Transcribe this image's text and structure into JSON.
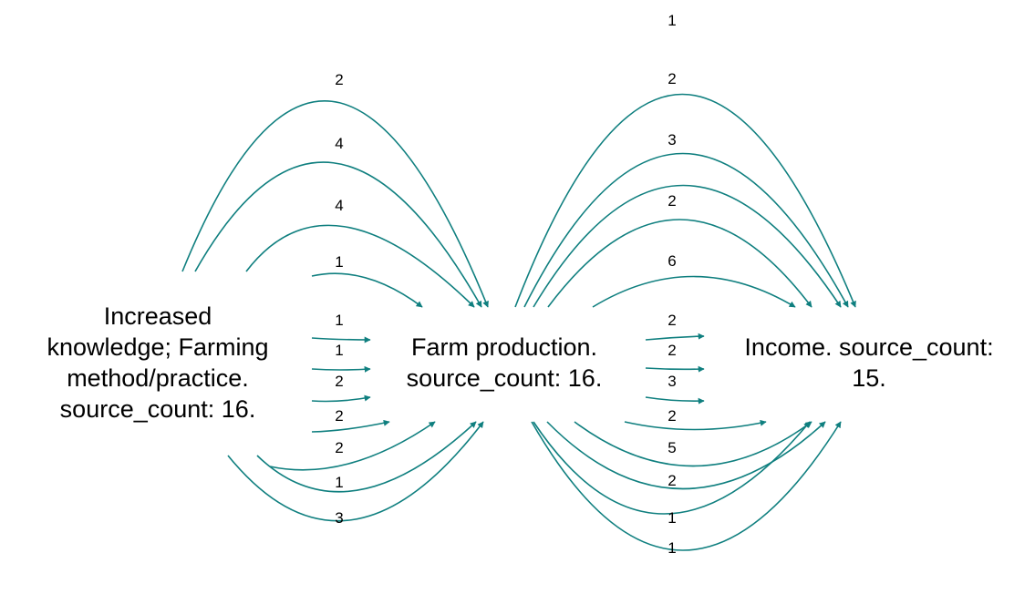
{
  "colors": {
    "edge": "#0f7f7f",
    "text": "#000000",
    "background": "#ffffff"
  },
  "nodes": [
    {
      "id": "knowledge",
      "lines": [
        "Increased",
        "knowledge; Farming",
        "method/practice.",
        "source_count: 16."
      ]
    },
    {
      "id": "production",
      "lines": [
        "Farm production.",
        "source_count: 16."
      ]
    },
    {
      "id": "income",
      "lines": [
        "Income. source_count:",
        "15."
      ]
    }
  ],
  "edges": [
    {
      "from": "knowledge",
      "to": "production",
      "label": "2"
    },
    {
      "from": "knowledge",
      "to": "production",
      "label": "4"
    },
    {
      "from": "knowledge",
      "to": "production",
      "label": "4"
    },
    {
      "from": "knowledge",
      "to": "production",
      "label": "1"
    },
    {
      "from": "knowledge",
      "to": "production",
      "label": "1"
    },
    {
      "from": "knowledge",
      "to": "production",
      "label": "1"
    },
    {
      "from": "knowledge",
      "to": "production",
      "label": "2"
    },
    {
      "from": "knowledge",
      "to": "production",
      "label": "2"
    },
    {
      "from": "knowledge",
      "to": "production",
      "label": "2"
    },
    {
      "from": "knowledge",
      "to": "production",
      "label": "1"
    },
    {
      "from": "knowledge",
      "to": "production",
      "label": "3"
    },
    {
      "from": "production",
      "to": "income",
      "label": "1"
    },
    {
      "from": "production",
      "to": "income",
      "label": "2"
    },
    {
      "from": "production",
      "to": "income",
      "label": "3"
    },
    {
      "from": "production",
      "to": "income",
      "label": "2"
    },
    {
      "from": "production",
      "to": "income",
      "label": "6"
    },
    {
      "from": "production",
      "to": "income",
      "label": "2"
    },
    {
      "from": "production",
      "to": "income",
      "label": "2"
    },
    {
      "from": "production",
      "to": "income",
      "label": "3"
    },
    {
      "from": "production",
      "to": "income",
      "label": "2"
    },
    {
      "from": "production",
      "to": "income",
      "label": "5"
    },
    {
      "from": "production",
      "to": "income",
      "label": "2"
    },
    {
      "from": "production",
      "to": "income",
      "label": "1"
    },
    {
      "from": "production",
      "to": "income",
      "label": "1"
    }
  ]
}
